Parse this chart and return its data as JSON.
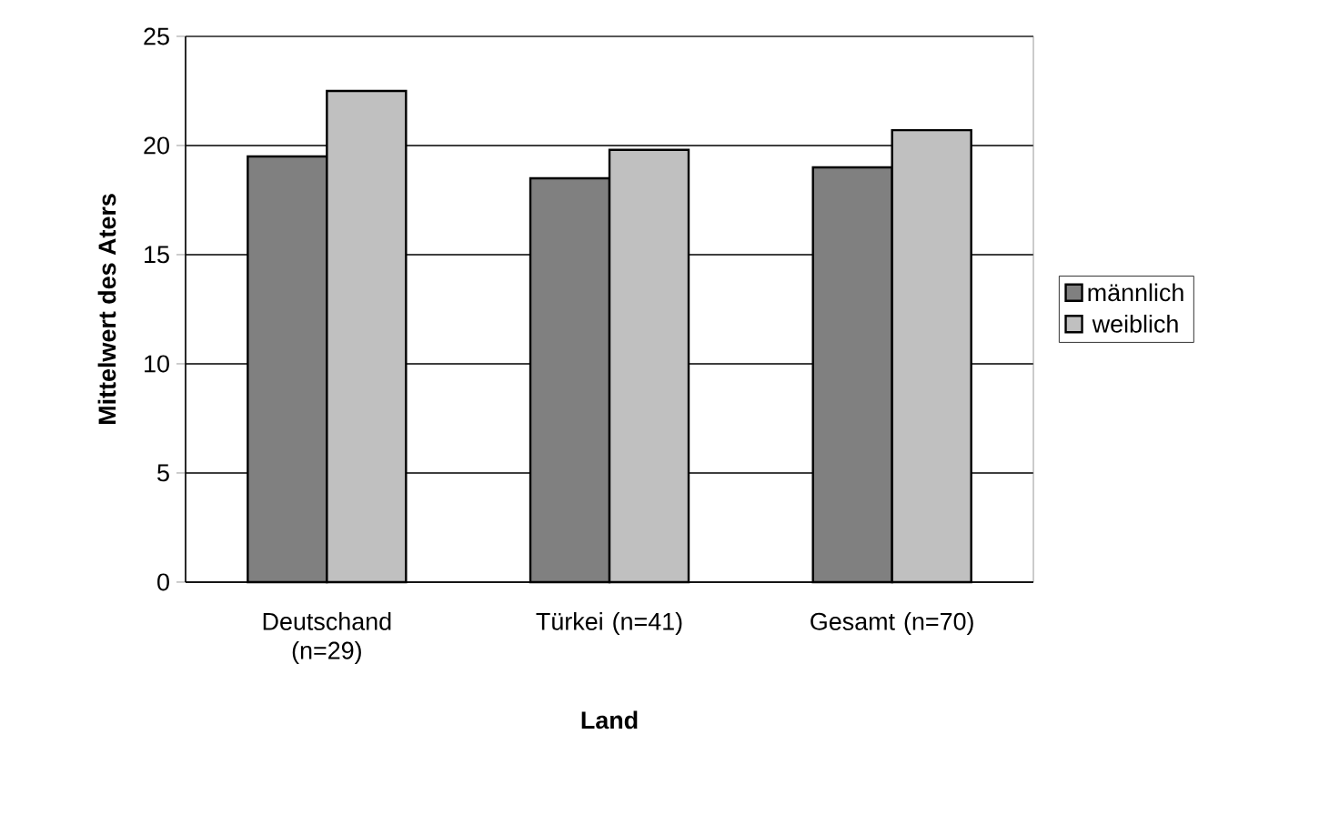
{
  "chart_data": {
    "type": "bar",
    "categories": [
      "Deutschand (n=29)",
      "Türkei (n=41)",
      "Gesamt (n=70)"
    ],
    "series": [
      {
        "name": "männlich",
        "color": "#808080",
        "values": [
          19.5,
          18.5,
          19.0
        ]
      },
      {
        "name": "weiblich",
        "color": "#c0c0c0",
        "values": [
          22.5,
          19.8,
          20.7
        ]
      }
    ],
    "xlabel": "Land",
    "ylabel": "Mittelwert des Aters",
    "ylim": [
      0,
      25
    ],
    "yticks": [
      0,
      5,
      10,
      15,
      20,
      25
    ],
    "grid": "y",
    "legend": "right"
  }
}
